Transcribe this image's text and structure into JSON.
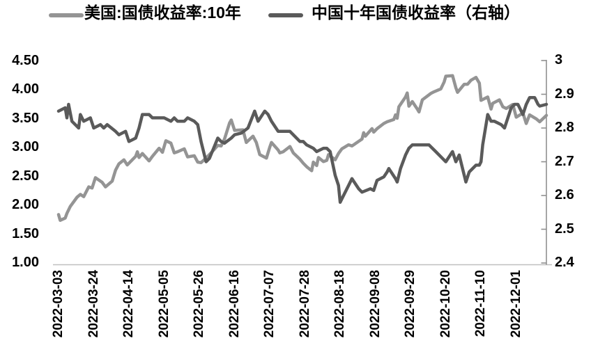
{
  "chart_data": {
    "type": "line",
    "title": "",
    "grid": false,
    "legend_position": "top",
    "x_domain": [
      "2022-03-03",
      "2022-12-19"
    ],
    "x_ticks": [
      "2022-03-03",
      "2022-03-24",
      "2022-04-14",
      "2022-05-05",
      "2022-05-26",
      "2022-06-16",
      "2022-07-07",
      "2022-07-28",
      "2022-08-18",
      "2022-09-08",
      "2022-09-29",
      "2022-10-20",
      "2022-11-10",
      "2022-12-01"
    ],
    "axis_left": {
      "min": 1.0,
      "max": 4.5,
      "tick_values": [
        4.5,
        4.0,
        3.5,
        3.0,
        2.5,
        2.0,
        1.5,
        1.0
      ],
      "tick_labels": [
        "4.50",
        "4.00",
        "3.50",
        "3.00",
        "2.50",
        "2.00",
        "1.50",
        "1.00"
      ]
    },
    "axis_right": {
      "min": 2.4,
      "max": 3.0,
      "tick_values": [
        3.0,
        2.9,
        2.8,
        2.7,
        2.6,
        2.5,
        2.4
      ],
      "tick_labels": [
        "3",
        "2.9",
        "2.8",
        "2.7",
        "2.6",
        "2.5",
        "2.4"
      ]
    },
    "series": [
      {
        "name": "美国:国债收益率:10年",
        "axis": "left",
        "color": "#949494",
        "points": [
          [
            "2022-03-03",
            1.84
          ],
          [
            "2022-03-04",
            1.74
          ],
          [
            "2022-03-07",
            1.78
          ],
          [
            "2022-03-08",
            1.86
          ],
          [
            "2022-03-10",
            1.98
          ],
          [
            "2022-03-14",
            2.14
          ],
          [
            "2022-03-16",
            2.19
          ],
          [
            "2022-03-18",
            2.15
          ],
          [
            "2022-03-21",
            2.32
          ],
          [
            "2022-03-23",
            2.3
          ],
          [
            "2022-03-25",
            2.48
          ],
          [
            "2022-03-29",
            2.4
          ],
          [
            "2022-03-31",
            2.32
          ],
          [
            "2022-04-04",
            2.42
          ],
          [
            "2022-04-06",
            2.61
          ],
          [
            "2022-04-08",
            2.72
          ],
          [
            "2022-04-11",
            2.79
          ],
          [
            "2022-04-13",
            2.7
          ],
          [
            "2022-04-18",
            2.85
          ],
          [
            "2022-04-19",
            2.93
          ],
          [
            "2022-04-20",
            2.83
          ],
          [
            "2022-04-22",
            2.9
          ],
          [
            "2022-04-26",
            2.77
          ],
          [
            "2022-04-28",
            2.85
          ],
          [
            "2022-05-02",
            2.99
          ],
          [
            "2022-05-04",
            2.92
          ],
          [
            "2022-05-06",
            3.12
          ],
          [
            "2022-05-09",
            3.08
          ],
          [
            "2022-05-11",
            2.91
          ],
          [
            "2022-05-13",
            2.93
          ],
          [
            "2022-05-17",
            2.98
          ],
          [
            "2022-05-19",
            2.84
          ],
          [
            "2022-05-23",
            2.86
          ],
          [
            "2022-05-25",
            2.75
          ],
          [
            "2022-05-27",
            2.74
          ],
          [
            "2022-05-31",
            2.85
          ],
          [
            "2022-06-02",
            2.91
          ],
          [
            "2022-06-06",
            3.04
          ],
          [
            "2022-06-08",
            3.03
          ],
          [
            "2022-06-10",
            3.15
          ],
          [
            "2022-06-13",
            3.43
          ],
          [
            "2022-06-14",
            3.48
          ],
          [
            "2022-06-16",
            3.3
          ],
          [
            "2022-06-21",
            3.31
          ],
          [
            "2022-06-23",
            3.09
          ],
          [
            "2022-06-27",
            3.2
          ],
          [
            "2022-06-29",
            3.09
          ],
          [
            "2022-07-01",
            2.88
          ],
          [
            "2022-07-05",
            2.82
          ],
          [
            "2022-07-07",
            3.01
          ],
          [
            "2022-07-08",
            3.09
          ],
          [
            "2022-07-12",
            2.96
          ],
          [
            "2022-07-13",
            2.91
          ],
          [
            "2022-07-15",
            2.93
          ],
          [
            "2022-07-19",
            3.02
          ],
          [
            "2022-07-21",
            2.91
          ],
          [
            "2022-07-25",
            2.8
          ],
          [
            "2022-07-27",
            2.73
          ],
          [
            "2022-07-29",
            2.67
          ],
          [
            "2022-08-01",
            2.6
          ],
          [
            "2022-08-02",
            2.75
          ],
          [
            "2022-08-04",
            2.69
          ],
          [
            "2022-08-05",
            2.83
          ],
          [
            "2022-08-08",
            2.76
          ],
          [
            "2022-08-10",
            2.78
          ],
          [
            "2022-08-11",
            2.88
          ],
          [
            "2022-08-15",
            2.79
          ],
          [
            "2022-08-17",
            2.9
          ],
          [
            "2022-08-19",
            2.98
          ],
          [
            "2022-08-23",
            3.05
          ],
          [
            "2022-08-25",
            3.03
          ],
          [
            "2022-08-29",
            3.11
          ],
          [
            "2022-08-31",
            3.15
          ],
          [
            "2022-09-01",
            3.26
          ],
          [
            "2022-09-02",
            3.2
          ],
          [
            "2022-09-06",
            3.33
          ],
          [
            "2022-09-07",
            3.27
          ],
          [
            "2022-09-09",
            3.33
          ],
          [
            "2022-09-13",
            3.42
          ],
          [
            "2022-09-15",
            3.45
          ],
          [
            "2022-09-19",
            3.49
          ],
          [
            "2022-09-20",
            3.57
          ],
          [
            "2022-09-21",
            3.51
          ],
          [
            "2022-09-22",
            3.71
          ],
          [
            "2022-09-26",
            3.88
          ],
          [
            "2022-09-27",
            3.95
          ],
          [
            "2022-09-28",
            3.72
          ],
          [
            "2022-09-30",
            3.8
          ],
          [
            "2022-10-03",
            3.67
          ],
          [
            "2022-10-04",
            3.62
          ],
          [
            "2022-10-06",
            3.83
          ],
          [
            "2022-10-11",
            3.94
          ],
          [
            "2022-10-13",
            3.97
          ],
          [
            "2022-10-17",
            4.02
          ],
          [
            "2022-10-19",
            4.14
          ],
          [
            "2022-10-20",
            4.24
          ],
          [
            "2022-10-24",
            4.25
          ],
          [
            "2022-10-26",
            4.04
          ],
          [
            "2022-10-27",
            3.96
          ],
          [
            "2022-10-31",
            4.1
          ],
          [
            "2022-11-02",
            4.1
          ],
          [
            "2022-11-04",
            4.17
          ],
          [
            "2022-11-07",
            4.22
          ],
          [
            "2022-11-09",
            4.12
          ],
          [
            "2022-11-10",
            3.82
          ],
          [
            "2022-11-14",
            3.88
          ],
          [
            "2022-11-16",
            3.67
          ],
          [
            "2022-11-17",
            3.77
          ],
          [
            "2022-11-21",
            3.83
          ],
          [
            "2022-11-23",
            3.71
          ],
          [
            "2022-11-25",
            3.68
          ],
          [
            "2022-11-29",
            3.75
          ],
          [
            "2022-12-01",
            3.53
          ],
          [
            "2022-12-05",
            3.6
          ],
          [
            "2022-12-07",
            3.42
          ],
          [
            "2022-12-09",
            3.57
          ],
          [
            "2022-12-13",
            3.5
          ],
          [
            "2022-12-15",
            3.45
          ],
          [
            "2022-12-19",
            3.56
          ]
        ]
      },
      {
        "name": "中国十年国债收益率（右轴）",
        "axis": "right",
        "color": "#5a5a5a",
        "points": [
          [
            "2022-03-03",
            2.85
          ],
          [
            "2022-03-07",
            2.86
          ],
          [
            "2022-03-08",
            2.83
          ],
          [
            "2022-03-09",
            2.87
          ],
          [
            "2022-03-11",
            2.82
          ],
          [
            "2022-03-15",
            2.8
          ],
          [
            "2022-03-16",
            2.84
          ],
          [
            "2022-03-18",
            2.82
          ],
          [
            "2022-03-22",
            2.83
          ],
          [
            "2022-03-24",
            2.8
          ],
          [
            "2022-03-28",
            2.81
          ],
          [
            "2022-03-30",
            2.8
          ],
          [
            "2022-04-01",
            2.81
          ],
          [
            "2022-04-06",
            2.79
          ],
          [
            "2022-04-08",
            2.78
          ],
          [
            "2022-04-12",
            2.79
          ],
          [
            "2022-04-14",
            2.76
          ],
          [
            "2022-04-18",
            2.77
          ],
          [
            "2022-04-20",
            2.8
          ],
          [
            "2022-04-22",
            2.84
          ],
          [
            "2022-04-26",
            2.84
          ],
          [
            "2022-04-28",
            2.83
          ],
          [
            "2022-05-05",
            2.83
          ],
          [
            "2022-05-09",
            2.82
          ],
          [
            "2022-05-11",
            2.83
          ],
          [
            "2022-05-13",
            2.82
          ],
          [
            "2022-05-17",
            2.82
          ],
          [
            "2022-05-19",
            2.83
          ],
          [
            "2022-05-23",
            2.82
          ],
          [
            "2022-05-25",
            2.81
          ],
          [
            "2022-05-27",
            2.76
          ],
          [
            "2022-05-30",
            2.7
          ],
          [
            "2022-06-01",
            2.71
          ],
          [
            "2022-06-06",
            2.77
          ],
          [
            "2022-06-08",
            2.76
          ],
          [
            "2022-06-10",
            2.755
          ],
          [
            "2022-06-14",
            2.77
          ],
          [
            "2022-06-16",
            2.78
          ],
          [
            "2022-06-20",
            2.785
          ],
          [
            "2022-06-24",
            2.8
          ],
          [
            "2022-06-28",
            2.85
          ],
          [
            "2022-06-30",
            2.82
          ],
          [
            "2022-07-04",
            2.85
          ],
          [
            "2022-07-06",
            2.84
          ],
          [
            "2022-07-08",
            2.82
          ],
          [
            "2022-07-12",
            2.79
          ],
          [
            "2022-07-14",
            2.79
          ],
          [
            "2022-07-19",
            2.79
          ],
          [
            "2022-07-21",
            2.78
          ],
          [
            "2022-07-25",
            2.76
          ],
          [
            "2022-07-27",
            2.76
          ],
          [
            "2022-07-29",
            2.75
          ],
          [
            "2022-08-02",
            2.74
          ],
          [
            "2022-08-04",
            2.73
          ],
          [
            "2022-08-08",
            2.74
          ],
          [
            "2022-08-10",
            2.74
          ],
          [
            "2022-08-12",
            2.73
          ],
          [
            "2022-08-15",
            2.66
          ],
          [
            "2022-08-17",
            2.63
          ],
          [
            "2022-08-18",
            2.58
          ],
          [
            "2022-08-19",
            2.59
          ],
          [
            "2022-08-23",
            2.63
          ],
          [
            "2022-08-25",
            2.65
          ],
          [
            "2022-08-29",
            2.62
          ],
          [
            "2022-08-31",
            2.61
          ],
          [
            "2022-09-05",
            2.62
          ],
          [
            "2022-09-07",
            2.615
          ],
          [
            "2022-09-09",
            2.645
          ],
          [
            "2022-09-13",
            2.655
          ],
          [
            "2022-09-15",
            2.67
          ],
          [
            "2022-09-16",
            2.68
          ],
          [
            "2022-09-20",
            2.65
          ],
          [
            "2022-09-21",
            2.64
          ],
          [
            "2022-09-23",
            2.68
          ],
          [
            "2022-09-26",
            2.72
          ],
          [
            "2022-09-28",
            2.74
          ],
          [
            "2022-09-30",
            2.75
          ],
          [
            "2022-10-10",
            2.75
          ],
          [
            "2022-10-12",
            2.74
          ],
          [
            "2022-10-14",
            2.73
          ],
          [
            "2022-10-18",
            2.71
          ],
          [
            "2022-10-20",
            2.7
          ],
          [
            "2022-10-24",
            2.73
          ],
          [
            "2022-10-26",
            2.7
          ],
          [
            "2022-10-28",
            2.72
          ],
          [
            "2022-10-31",
            2.66
          ],
          [
            "2022-11-01",
            2.64
          ],
          [
            "2022-11-03",
            2.67
          ],
          [
            "2022-11-07",
            2.69
          ],
          [
            "2022-11-09",
            2.69
          ],
          [
            "2022-11-10",
            2.7
          ],
          [
            "2022-11-11",
            2.75
          ],
          [
            "2022-11-14",
            2.84
          ],
          [
            "2022-11-15",
            2.83
          ],
          [
            "2022-11-16",
            2.82
          ],
          [
            "2022-11-18",
            2.82
          ],
          [
            "2022-11-22",
            2.81
          ],
          [
            "2022-11-24",
            2.8
          ],
          [
            "2022-11-28",
            2.86
          ],
          [
            "2022-11-30",
            2.87
          ],
          [
            "2022-12-02",
            2.87
          ],
          [
            "2022-12-05",
            2.84
          ],
          [
            "2022-12-07",
            2.87
          ],
          [
            "2022-12-09",
            2.89
          ],
          [
            "2022-12-12",
            2.89
          ],
          [
            "2022-12-14",
            2.87
          ],
          [
            "2022-12-15",
            2.865
          ],
          [
            "2022-12-19",
            2.87
          ]
        ]
      }
    ]
  }
}
